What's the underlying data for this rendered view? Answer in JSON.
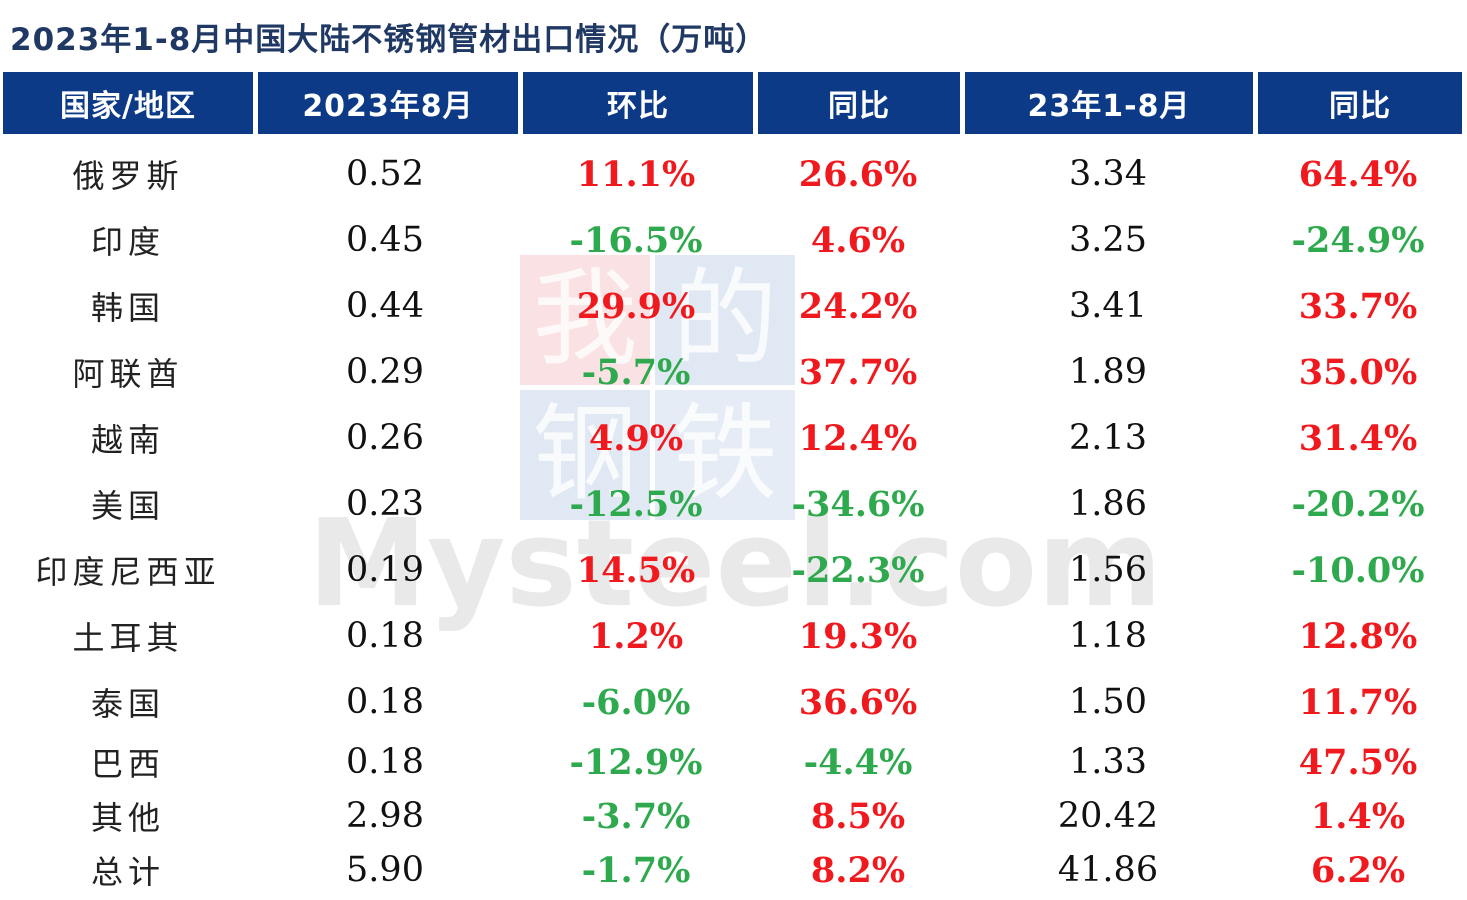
{
  "title": "2023年1-8月中国大陆不锈钢管材出口情况（万吨）",
  "colors": {
    "header_bg": "#0c3a87",
    "header_text": "#ffffff",
    "positive": "#f0191e",
    "negative": "#2ea94d",
    "title": "#1f3864"
  },
  "chart_data": {
    "type": "table",
    "title": "2023年1-8月中国大陆不锈钢管材出口情况（万吨）",
    "headers": [
      "国家/地区",
      "2023年8月",
      "环比",
      "同比",
      "23年1-8月",
      "同比"
    ],
    "rows": [
      {
        "country": "俄罗斯",
        "aug": "0.52",
        "mom": "11.1%",
        "yoy": "26.6%",
        "ytd": "3.34",
        "ytd_yoy": "64.4%"
      },
      {
        "country": "印度",
        "aug": "0.45",
        "mom": "-16.5%",
        "yoy": "4.6%",
        "ytd": "3.25",
        "ytd_yoy": "-24.9%"
      },
      {
        "country": "韩国",
        "aug": "0.44",
        "mom": "29.9%",
        "yoy": "24.2%",
        "ytd": "3.41",
        "ytd_yoy": "33.7%"
      },
      {
        "country": "阿联酋",
        "aug": "0.29",
        "mom": "-5.7%",
        "yoy": "37.7%",
        "ytd": "1.89",
        "ytd_yoy": "35.0%"
      },
      {
        "country": "越南",
        "aug": "0.26",
        "mom": "4.9%",
        "yoy": "12.4%",
        "ytd": "2.13",
        "ytd_yoy": "31.4%"
      },
      {
        "country": "美国",
        "aug": "0.23",
        "mom": "-12.5%",
        "yoy": "-34.6%",
        "ytd": "1.86",
        "ytd_yoy": "-20.2%"
      },
      {
        "country": "印度尼西亚",
        "aug": "0.19",
        "mom": "14.5%",
        "yoy": "-22.3%",
        "ytd": "1.56",
        "ytd_yoy": "-10.0%"
      },
      {
        "country": "土耳其",
        "aug": "0.18",
        "mom": "1.2%",
        "yoy": "19.3%",
        "ytd": "1.18",
        "ytd_yoy": "12.8%"
      },
      {
        "country": "泰国",
        "aug": "0.18",
        "mom": "-6.0%",
        "yoy": "36.6%",
        "ytd": "1.50",
        "ytd_yoy": "11.7%"
      },
      {
        "country": "巴西",
        "aug": "0.18",
        "mom": "-12.9%",
        "yoy": "-4.4%",
        "ytd": "1.33",
        "ytd_yoy": "47.5%"
      },
      {
        "country": "其他",
        "aug": "2.98",
        "mom": "-3.7%",
        "yoy": "8.5%",
        "ytd": "20.42",
        "ytd_yoy": "1.4%"
      },
      {
        "country": "总计",
        "aug": "5.90",
        "mom": "-1.7%",
        "yoy": "8.2%",
        "ytd": "41.86",
        "ytd_yoy": "6.2%"
      }
    ]
  },
  "watermark": {
    "chars": [
      "我",
      "的",
      "钢",
      "铁"
    ],
    "text": "Mysteel.com"
  }
}
